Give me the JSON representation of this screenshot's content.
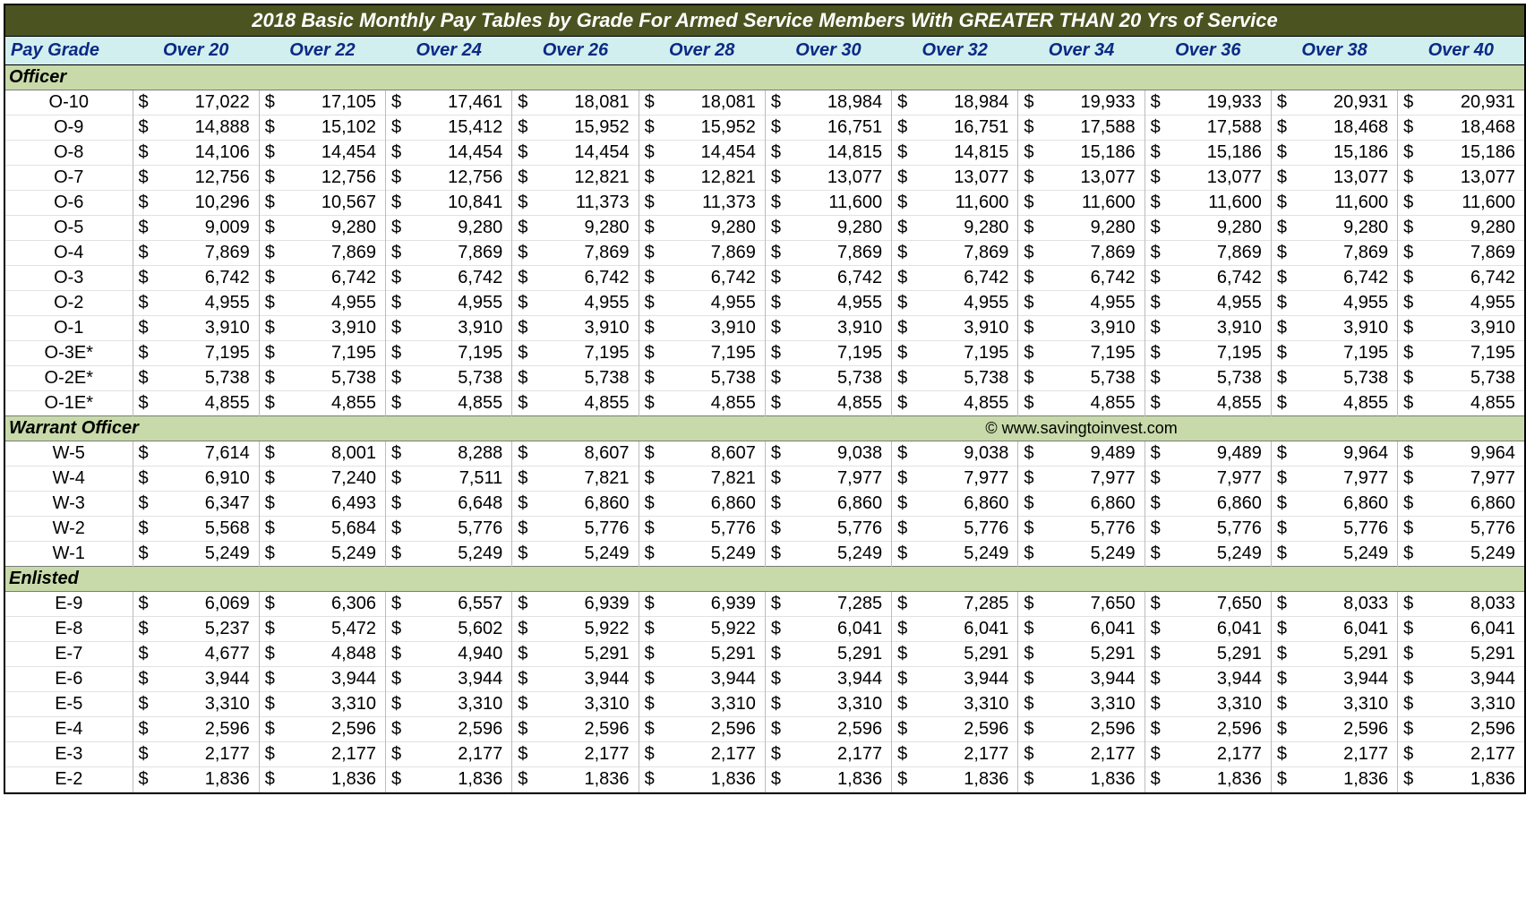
{
  "title": "2018 Basic Monthly Pay Tables by Grade For Armed Service Members With GREATER THAN 20 Yrs of Service",
  "colors": {
    "title_bg": "#4b5320",
    "title_fg": "#ffffff",
    "header_bg": "#d2efef",
    "header_fg": "#0a2a85",
    "section_bg": "#c8daa9",
    "row_border": "#e2e2e2",
    "col_border": "#bcbcbc",
    "outer_border": "#000000"
  },
  "columns": [
    "Pay Grade",
    "Over 20",
    "Over 22",
    "Over 24",
    "Over 26",
    "Over 28",
    "Over 30",
    "Over 32",
    "Over 34",
    "Over 36",
    "Over 38",
    "Over 40"
  ],
  "currency_symbol": "$",
  "sections": [
    {
      "label": "Officer",
      "watermark": null,
      "rows": [
        {
          "grade": "O-10",
          "values": [
            "17,022",
            "17,105",
            "17,461",
            "18,081",
            "18,081",
            "18,984",
            "18,984",
            "19,933",
            "19,933",
            "20,931",
            "20,931"
          ]
        },
        {
          "grade": "O-9",
          "values": [
            "14,888",
            "15,102",
            "15,412",
            "15,952",
            "15,952",
            "16,751",
            "16,751",
            "17,588",
            "17,588",
            "18,468",
            "18,468"
          ]
        },
        {
          "grade": "O-8",
          "values": [
            "14,106",
            "14,454",
            "14,454",
            "14,454",
            "14,454",
            "14,815",
            "14,815",
            "15,186",
            "15,186",
            "15,186",
            "15,186"
          ]
        },
        {
          "grade": "O-7",
          "values": [
            "12,756",
            "12,756",
            "12,756",
            "12,821",
            "12,821",
            "13,077",
            "13,077",
            "13,077",
            "13,077",
            "13,077",
            "13,077"
          ]
        },
        {
          "grade": "O-6",
          "values": [
            "10,296",
            "10,567",
            "10,841",
            "11,373",
            "11,373",
            "11,600",
            "11,600",
            "11,600",
            "11,600",
            "11,600",
            "11,600"
          ]
        },
        {
          "grade": "O-5",
          "values": [
            "9,009",
            "9,280",
            "9,280",
            "9,280",
            "9,280",
            "9,280",
            "9,280",
            "9,280",
            "9,280",
            "9,280",
            "9,280"
          ]
        },
        {
          "grade": "O-4",
          "values": [
            "7,869",
            "7,869",
            "7,869",
            "7,869",
            "7,869",
            "7,869",
            "7,869",
            "7,869",
            "7,869",
            "7,869",
            "7,869"
          ]
        },
        {
          "grade": "O-3",
          "values": [
            "6,742",
            "6,742",
            "6,742",
            "6,742",
            "6,742",
            "6,742",
            "6,742",
            "6,742",
            "6,742",
            "6,742",
            "6,742"
          ]
        },
        {
          "grade": "O-2",
          "values": [
            "4,955",
            "4,955",
            "4,955",
            "4,955",
            "4,955",
            "4,955",
            "4,955",
            "4,955",
            "4,955",
            "4,955",
            "4,955"
          ]
        },
        {
          "grade": "O-1",
          "values": [
            "3,910",
            "3,910",
            "3,910",
            "3,910",
            "3,910",
            "3,910",
            "3,910",
            "3,910",
            "3,910",
            "3,910",
            "3,910"
          ]
        },
        {
          "grade": "O-3E*",
          "values": [
            "7,195",
            "7,195",
            "7,195",
            "7,195",
            "7,195",
            "7,195",
            "7,195",
            "7,195",
            "7,195",
            "7,195",
            "7,195"
          ]
        },
        {
          "grade": "O-2E*",
          "values": [
            "5,738",
            "5,738",
            "5,738",
            "5,738",
            "5,738",
            "5,738",
            "5,738",
            "5,738",
            "5,738",
            "5,738",
            "5,738"
          ]
        },
        {
          "grade": "O-1E*",
          "values": [
            "4,855",
            "4,855",
            "4,855",
            "4,855",
            "4,855",
            "4,855",
            "4,855",
            "4,855",
            "4,855",
            "4,855",
            "4,855"
          ]
        }
      ]
    },
    {
      "label": "Warrant Officer",
      "watermark": "© www.savingtoinvest.com",
      "rows": [
        {
          "grade": "W-5",
          "values": [
            "7,614",
            "8,001",
            "8,288",
            "8,607",
            "8,607",
            "9,038",
            "9,038",
            "9,489",
            "9,489",
            "9,964",
            "9,964"
          ]
        },
        {
          "grade": "W-4",
          "values": [
            "6,910",
            "7,240",
            "7,511",
            "7,821",
            "7,821",
            "7,977",
            "7,977",
            "7,977",
            "7,977",
            "7,977",
            "7,977"
          ]
        },
        {
          "grade": "W-3",
          "values": [
            "6,347",
            "6,493",
            "6,648",
            "6,860",
            "6,860",
            "6,860",
            "6,860",
            "6,860",
            "6,860",
            "6,860",
            "6,860"
          ]
        },
        {
          "grade": "W-2",
          "values": [
            "5,568",
            "5,684",
            "5,776",
            "5,776",
            "5,776",
            "5,776",
            "5,776",
            "5,776",
            "5,776",
            "5,776",
            "5,776"
          ]
        },
        {
          "grade": "W-1",
          "values": [
            "5,249",
            "5,249",
            "5,249",
            "5,249",
            "5,249",
            "5,249",
            "5,249",
            "5,249",
            "5,249",
            "5,249",
            "5,249"
          ]
        }
      ]
    },
    {
      "label": " Enlisted",
      "watermark": null,
      "rows": [
        {
          "grade": "E-9",
          "values": [
            "6,069",
            "6,306",
            "6,557",
            "6,939",
            "6,939",
            "7,285",
            "7,285",
            "7,650",
            "7,650",
            "8,033",
            "8,033"
          ]
        },
        {
          "grade": "E-8",
          "values": [
            "5,237",
            "5,472",
            "5,602",
            "5,922",
            "5,922",
            "6,041",
            "6,041",
            "6,041",
            "6,041",
            "6,041",
            "6,041"
          ]
        },
        {
          "grade": "E-7",
          "values": [
            "4,677",
            "4,848",
            "4,940",
            "5,291",
            "5,291",
            "5,291",
            "5,291",
            "5,291",
            "5,291",
            "5,291",
            "5,291"
          ]
        },
        {
          "grade": "E-6",
          "values": [
            "3,944",
            "3,944",
            "3,944",
            "3,944",
            "3,944",
            "3,944",
            "3,944",
            "3,944",
            "3,944",
            "3,944",
            "3,944"
          ]
        },
        {
          "grade": "E-5",
          "values": [
            "3,310",
            "3,310",
            "3,310",
            "3,310",
            "3,310",
            "3,310",
            "3,310",
            "3,310",
            "3,310",
            "3,310",
            "3,310"
          ]
        },
        {
          "grade": "E-4",
          "values": [
            "2,596",
            "2,596",
            "2,596",
            "2,596",
            "2,596",
            "2,596",
            "2,596",
            "2,596",
            "2,596",
            "2,596",
            "2,596"
          ]
        },
        {
          "grade": "E-3",
          "values": [
            "2,177",
            "2,177",
            "2,177",
            "2,177",
            "2,177",
            "2,177",
            "2,177",
            "2,177",
            "2,177",
            "2,177",
            "2,177"
          ]
        },
        {
          "grade": "E-2",
          "values": [
            "1,836",
            "1,836",
            "1,836",
            "1,836",
            "1,836",
            "1,836",
            "1,836",
            "1,836",
            "1,836",
            "1,836",
            "1,836"
          ]
        }
      ]
    }
  ]
}
